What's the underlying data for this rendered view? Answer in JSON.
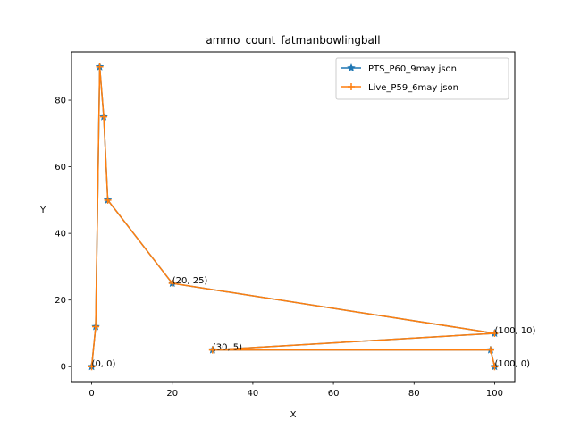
{
  "chart_data": {
    "type": "line",
    "title": "ammo_count_fatmanbowlingball",
    "xlabel": "X",
    "ylabel": "Y",
    "xlim": [
      -5,
      105
    ],
    "ylim": [
      -4.5,
      94.5
    ],
    "xticks": [
      0,
      20,
      40,
      60,
      80,
      100
    ],
    "yticks": [
      0,
      20,
      40,
      60,
      80
    ],
    "grid": false,
    "legend_position": "top-right",
    "series": [
      {
        "name": "PTS_P60_9may json",
        "color": "#1f77b4",
        "marker": "star",
        "points": [
          [
            0,
            0
          ],
          [
            1,
            12
          ],
          [
            2,
            90
          ],
          [
            3,
            75
          ],
          [
            4,
            50
          ],
          [
            20,
            25
          ],
          [
            100,
            10
          ],
          [
            30,
            5
          ],
          [
            99,
            5
          ],
          [
            100,
            0
          ]
        ]
      },
      {
        "name": "Live_P59_6may json",
        "color": "#ff7f0e",
        "marker": "plus",
        "points": [
          [
            0,
            0
          ],
          [
            1,
            12
          ],
          [
            2,
            90
          ],
          [
            3,
            75
          ],
          [
            4,
            50
          ],
          [
            20,
            25
          ],
          [
            100,
            10
          ],
          [
            30,
            5
          ],
          [
            99,
            5
          ],
          [
            100,
            0
          ]
        ]
      }
    ],
    "annotations": [
      {
        "text": "(0, 0)",
        "x": 0,
        "y": 0
      },
      {
        "text": "(20, 25)",
        "x": 20,
        "y": 25
      },
      {
        "text": "(30, 5)",
        "x": 30,
        "y": 5
      },
      {
        "text": "(100, 10)",
        "x": 100,
        "y": 10
      },
      {
        "text": "(100, 0)",
        "x": 100,
        "y": 0
      }
    ]
  }
}
